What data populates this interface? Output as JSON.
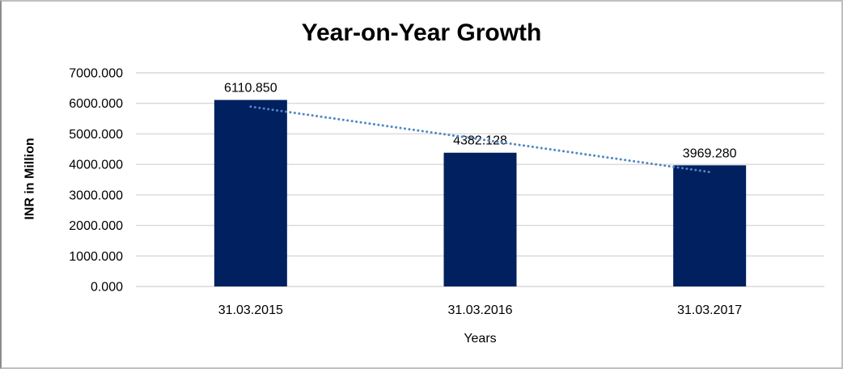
{
  "frame": {
    "background": "#ffffff",
    "border_color": "#bfbfbf"
  },
  "chart_data": {
    "type": "bar",
    "title": "Year-on-Year Growth",
    "xlabel": "Years",
    "ylabel": "INR in Million",
    "categories": [
      "31.03.2015",
      "31.03.2016",
      "31.03.2017"
    ],
    "values": [
      6110.85,
      4382.128,
      3969.28
    ],
    "data_labels": [
      "6110.850",
      "4382.128",
      "3969.280"
    ],
    "ylim": [
      0,
      7000
    ],
    "ytick_interval": 1000,
    "ytick_labels": [
      "7000.000",
      "6000.000",
      "5000.000",
      "4000.000",
      "3000.000",
      "2000.000",
      "1000.000",
      "0.000"
    ],
    "grid": true,
    "legend": "none",
    "bar_color": "#012060",
    "gridline_color": "#d9d9d9",
    "text_color": "#000000",
    "trendline": {
      "type": "linear",
      "style": "dotted",
      "color": "#4f86c6",
      "fit_start_value": 5891.5,
      "fit_end_value": 3750.0
    }
  }
}
